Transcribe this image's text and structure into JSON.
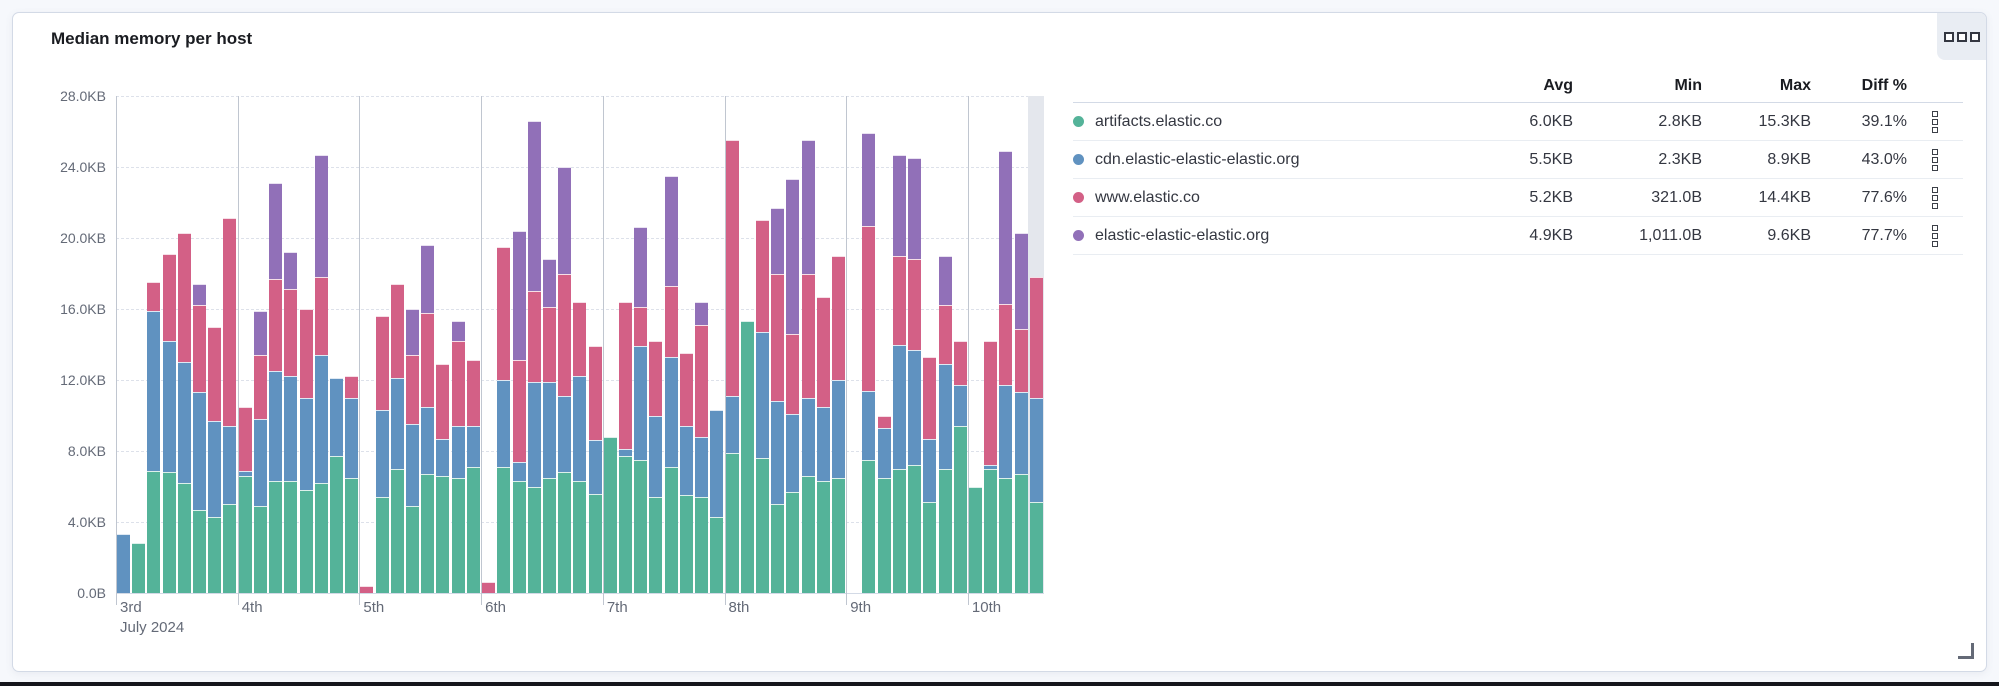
{
  "panel": {
    "title": "Median memory per host",
    "options_button_icon": "panel-options-icon",
    "resize_icon": "resize-corner-icon"
  },
  "legend": {
    "headers": {
      "avg": "Avg",
      "min": "Min",
      "max": "Max",
      "diff": "Diff %"
    },
    "rows": [
      {
        "name": "artifacts.elastic.co",
        "color": "#54b399",
        "avg": "6.0KB",
        "min": "2.8KB",
        "max": "15.3KB",
        "diff": "39.1%"
      },
      {
        "name": "cdn.elastic-elastic-elastic.org",
        "color": "#6092c0",
        "avg": "5.5KB",
        "min": "2.3KB",
        "max": "8.9KB",
        "diff": "43.0%"
      },
      {
        "name": "www.elastic.co",
        "color": "#d36086",
        "avg": "5.2KB",
        "min": "321.0B",
        "max": "14.4KB",
        "diff": "77.6%"
      },
      {
        "name": "elastic-elastic-elastic.org",
        "color": "#9170b8",
        "avg": "4.9KB",
        "min": "1,011.0B",
        "max": "9.6KB",
        "diff": "77.7%"
      }
    ]
  },
  "chart_data": {
    "type": "bar",
    "stacked": true,
    "title": "Median memory per host",
    "ylabel": "",
    "xlabel": "",
    "ylim": [
      0,
      28
    ],
    "unit": "KB",
    "grid": "horizontal-dashed",
    "y_ticks": [
      {
        "value": 28,
        "label": "28.0KB"
      },
      {
        "value": 24,
        "label": "24.0KB"
      },
      {
        "value": 20,
        "label": "20.0KB"
      },
      {
        "value": 16,
        "label": "16.0KB"
      },
      {
        "value": 12,
        "label": "12.0KB"
      },
      {
        "value": 8,
        "label": "8.0KB"
      },
      {
        "value": 4,
        "label": "4.0KB"
      },
      {
        "value": 0,
        "label": "0.0B"
      }
    ],
    "x_day_labels": [
      "3rd",
      "4th",
      "5th",
      "6th",
      "7th",
      "8th",
      "9th",
      "10th"
    ],
    "x_secondary_label": "July 2024",
    "slots_per_day": 8,
    "total_slots": 61,
    "partial_bucket_index": 60,
    "series": [
      {
        "name": "artifacts.elastic.co",
        "color": "#54b399",
        "values": [
          0,
          2.8,
          6.9,
          6.8,
          6.2,
          4.7,
          4.3,
          5.0,
          6.6,
          4.9,
          6.3,
          6.3,
          5.8,
          6.2,
          7.7,
          6.5,
          0,
          5.4,
          7.0,
          4.9,
          6.7,
          6.6,
          6.5,
          7.1,
          0,
          7.1,
          6.3,
          6.0,
          6.5,
          6.8,
          6.3,
          5.6,
          8.8,
          7.7,
          7.5,
          5.4,
          7.1,
          5.5,
          5.4,
          4.3,
          7.9,
          15.3,
          7.6,
          5.0,
          5.7,
          6.6,
          6.3,
          6.5,
          0,
          7.5,
          6.5,
          7.0,
          7.2,
          5.1,
          7.0,
          9.4,
          6.0,
          7.0,
          6.5,
          6.7,
          5.1
        ]
      },
      {
        "name": "cdn.elastic-elastic-elastic.org",
        "color": "#6092c0",
        "values": [
          3.3,
          0,
          9.0,
          7.4,
          6.8,
          6.6,
          5.4,
          4.4,
          0.3,
          4.9,
          6.2,
          5.9,
          5.2,
          7.2,
          4.4,
          4.5,
          0,
          4.9,
          5.1,
          4.6,
          3.8,
          2.1,
          2.9,
          2.3,
          0,
          4.9,
          1.1,
          5.9,
          5.4,
          4.3,
          5.9,
          3.0,
          0,
          0.4,
          6.4,
          4.6,
          6.2,
          3.9,
          3.4,
          6.0,
          3.2,
          0,
          7.1,
          5.8,
          4.4,
          4.4,
          4.2,
          5.5,
          0,
          3.9,
          2.8,
          7.0,
          6.5,
          3.6,
          5.9,
          2.3,
          0,
          0.2,
          5.2,
          4.6,
          5.9
        ]
      },
      {
        "name": "www.elastic.co",
        "color": "#d36086",
        "values": [
          0,
          0,
          1.6,
          4.9,
          7.3,
          4.9,
          5.3,
          11.7,
          3.6,
          3.6,
          5.2,
          4.9,
          5.0,
          4.4,
          0,
          1.2,
          0.4,
          5.3,
          5.3,
          3.9,
          5.3,
          4.2,
          4.8,
          3.7,
          0.6,
          7.5,
          5.7,
          5.1,
          4.2,
          6.9,
          4.2,
          5.3,
          0,
          8.3,
          2.2,
          4.2,
          4.0,
          4.1,
          6.3,
          0,
          14.4,
          0,
          6.3,
          7.2,
          4.5,
          7.0,
          6.2,
          7.0,
          0,
          9.3,
          0.7,
          5.0,
          5.1,
          4.6,
          3.3,
          2.5,
          0,
          7.0,
          4.6,
          3.6,
          6.8
        ]
      },
      {
        "name": "elastic-elastic-elastic.org",
        "color": "#9170b8",
        "values": [
          0,
          0,
          0,
          0,
          0,
          1.2,
          0,
          0,
          0,
          2.5,
          5.4,
          2.1,
          0,
          6.9,
          0,
          0,
          0,
          0,
          0,
          2.6,
          3.8,
          0,
          1.1,
          0,
          0,
          0,
          7.3,
          9.6,
          2.7,
          6.0,
          0,
          0,
          0,
          0,
          4.5,
          0,
          6.2,
          0,
          1.3,
          0,
          0,
          0,
          0,
          3.7,
          8.7,
          7.5,
          0,
          0,
          0,
          5.2,
          0,
          5.7,
          5.7,
          0,
          2.8,
          0,
          0,
          0,
          8.6,
          5.4,
          0
        ]
      }
    ]
  }
}
